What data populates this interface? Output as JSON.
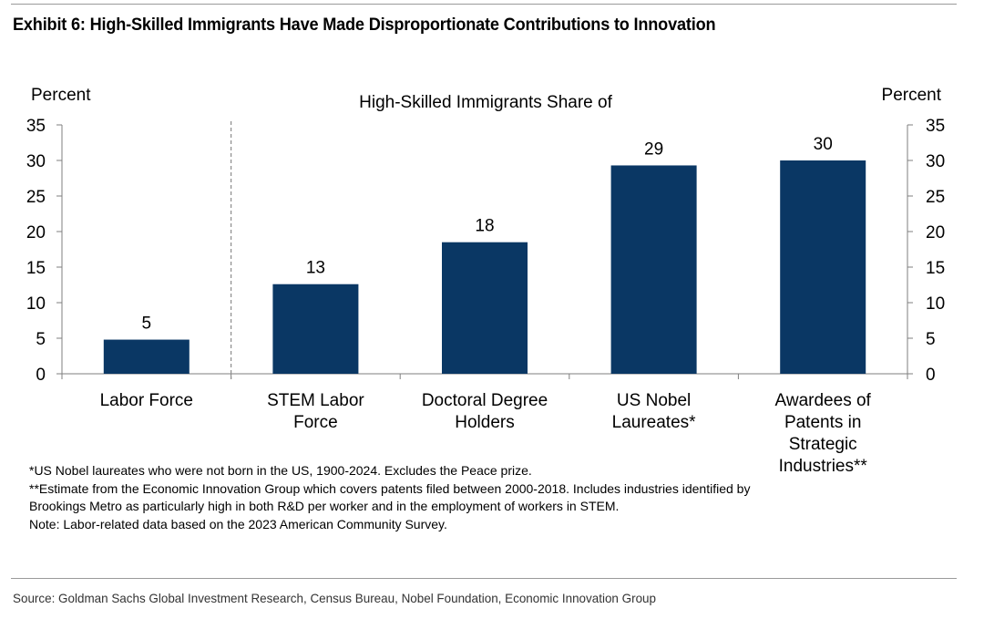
{
  "title": "Exhibit 6: High-Skilled Immigrants Have Made Disproportionate Contributions to Innovation",
  "chart_data": {
    "type": "bar",
    "title": "High-Skilled Immigrants Share of",
    "ylabel_left": "Percent",
    "ylabel_right": "Percent",
    "ylim": [
      0,
      35
    ],
    "yticks": [
      0,
      5,
      10,
      15,
      20,
      25,
      30,
      35
    ],
    "categories": [
      [
        "Labor Force"
      ],
      [
        "STEM Labor",
        "Force"
      ],
      [
        "Doctoral Degree",
        "Holders"
      ],
      [
        "US Nobel",
        "Laureates*"
      ],
      [
        "Awardees of",
        "Patents in",
        "Strategic",
        "Industries**"
      ]
    ],
    "values": [
      4.8,
      12.6,
      18.5,
      29.3,
      30
    ],
    "data_labels": [
      "5",
      "13",
      "18",
      "29",
      "30"
    ],
    "bar_color": "#0a3764",
    "divider_after_category": 0,
    "grid": false
  },
  "notes": [
    "*US Nobel laureates who were not born in the US, 1900-2024. Excludes the Peace prize.",
    "**Estimate from the Economic Innovation Group which covers patents filed between 2000-2018. Includes industries identified by",
    "Brookings Metro as particularly high in both R&D per worker and in the employment of workers in STEM.",
    "Note: Labor-related data based on the 2023 American Community Survey."
  ],
  "source": "Source: Goldman Sachs Global Investment Research, Census Bureau, Nobel Foundation, Economic Innovation Group"
}
